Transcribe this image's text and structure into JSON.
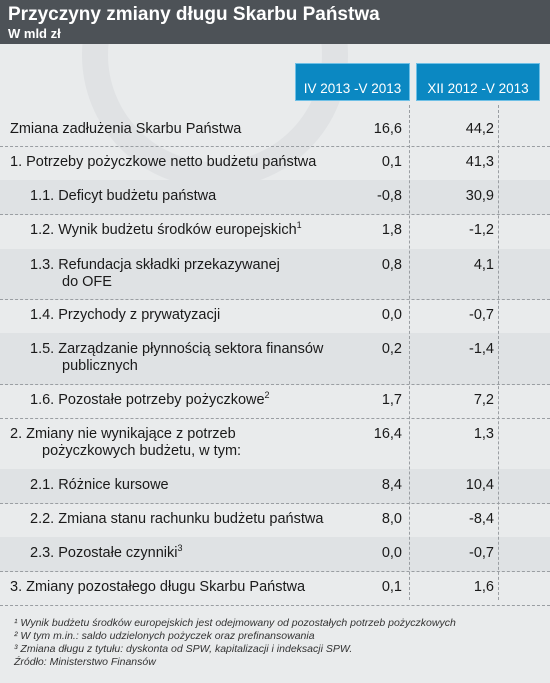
{
  "header": {
    "title": "Przyczyny zmiany długu Skarbu Państwa",
    "subtitle": "W mld zł"
  },
  "chart_data": {
    "type": "table",
    "title": "Przyczyny zmiany długu Skarbu Państwa",
    "subtitle": "W mld zł",
    "columns": [
      "IV 2013 -V 2013",
      "XII 2012 -V 2013"
    ],
    "rows": [
      {
        "label": "Zmiana zadłużenia Skarbu Państwa",
        "sup": "",
        "level": 0,
        "values": [
          "16,6",
          "44,2"
        ]
      },
      {
        "label": "1. Potrzeby pożyczkowe netto budżetu państwa",
        "sup": "",
        "level": 0,
        "values": [
          "0,1",
          "41,3"
        ]
      },
      {
        "label": "1.1. Deficyt budżetu państwa",
        "sup": "",
        "level": 1,
        "values": [
          "-0,8",
          "30,9"
        ]
      },
      {
        "label": "1.2. Wynik budżetu środków europejskich",
        "sup": "1",
        "level": 1,
        "values": [
          "1,8",
          "-1,2"
        ]
      },
      {
        "label": "1.3. Refundacja składki przekazywanej\ndo OFE",
        "sup": "",
        "level": 1,
        "values": [
          "0,8",
          "4,1"
        ]
      },
      {
        "label": "1.4. Przychody z prywatyzacji",
        "sup": "",
        "level": 1,
        "values": [
          "0,0",
          "-0,7"
        ]
      },
      {
        "label": "1.5. Zarządzanie płynnością sektora finansów\npublicznych",
        "sup": "",
        "level": 1,
        "values": [
          "0,2",
          "-1,4"
        ]
      },
      {
        "label": "1.6. Pozostałe potrzeby pożyczkowe",
        "sup": "2",
        "level": 1,
        "values": [
          "1,7",
          "7,2"
        ]
      },
      {
        "label": "2. Zmiany nie wynikające z potrzeb\npożyczkowych budżetu, w tym:",
        "sup": "",
        "level": 0,
        "values": [
          "16,4",
          "1,3"
        ]
      },
      {
        "label": "2.1. Różnice kursowe",
        "sup": "",
        "level": 1,
        "values": [
          "8,4",
          "10,4"
        ]
      },
      {
        "label": "2.2. Zmiana stanu rachunku budżetu państwa",
        "sup": "",
        "level": 1,
        "values": [
          "8,0",
          "-8,4"
        ]
      },
      {
        "label": "2.3. Pozostałe czynniki",
        "sup": "3",
        "level": 1,
        "values": [
          "0,0",
          "-0,7"
        ]
      },
      {
        "label": "3. Zmiany pozostałego długu Skarbu Państwa",
        "sup": "",
        "level": 0,
        "values": [
          "0,1",
          "1,6"
        ]
      }
    ]
  },
  "footnotes": [
    "¹ Wynik budżetu środków europejskich jest odejmowany od pozostałych potrzeb pożyczkowych",
    "² W tym m.in.: saldo udzielonych pożyczek oraz prefinansowania",
    "³ Zmiana długu z tytułu: dyskonta od SPW, kapitalizacji i indeksacji SPW.",
    "Źródło: Ministerstwo Finansów"
  ],
  "colors": {
    "header_bg": "#4d5257",
    "column_header_bg": "#0b88c2",
    "background": "#e9ebec",
    "shaded_row": "#dfe2e4"
  }
}
